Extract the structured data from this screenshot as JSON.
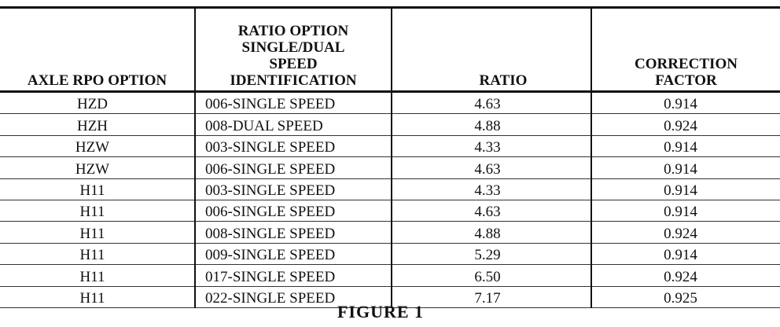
{
  "table": {
    "header": [
      [
        "AXLE RPO OPTION"
      ],
      [
        "RATIO OPTION",
        "SINGLE/DUAL",
        "SPEED",
        "IDENTIFICATION"
      ],
      [
        "RATIO"
      ],
      [
        "CORRECTION",
        "FACTOR"
      ]
    ],
    "rows": [
      [
        "HZD",
        "006-SINGLE SPEED",
        "4.63",
        "0.914"
      ],
      [
        "HZH",
        "008-DUAL SPEED",
        "4.88",
        "0.924"
      ],
      [
        "HZW",
        "003-SINGLE SPEED",
        "4.33",
        "0.914"
      ],
      [
        "HZW",
        "006-SINGLE SPEED",
        "4.63",
        "0.914"
      ],
      [
        "H11",
        "003-SINGLE SPEED",
        "4.33",
        "0.914"
      ],
      [
        "H11",
        "006-SINGLE SPEED",
        "4.63",
        "0.914"
      ],
      [
        "H11",
        "008-SINGLE SPEED",
        "4.88",
        "0.924"
      ],
      [
        "H11",
        "009-SINGLE SPEED",
        "5.29",
        "0.914"
      ],
      [
        "H11",
        "017-SINGLE SPEED",
        "6.50",
        "0.924"
      ],
      [
        "H11",
        "022-SINGLE SPEED",
        "7.17",
        "0.925"
      ]
    ]
  },
  "caption": "FIGURE 1"
}
